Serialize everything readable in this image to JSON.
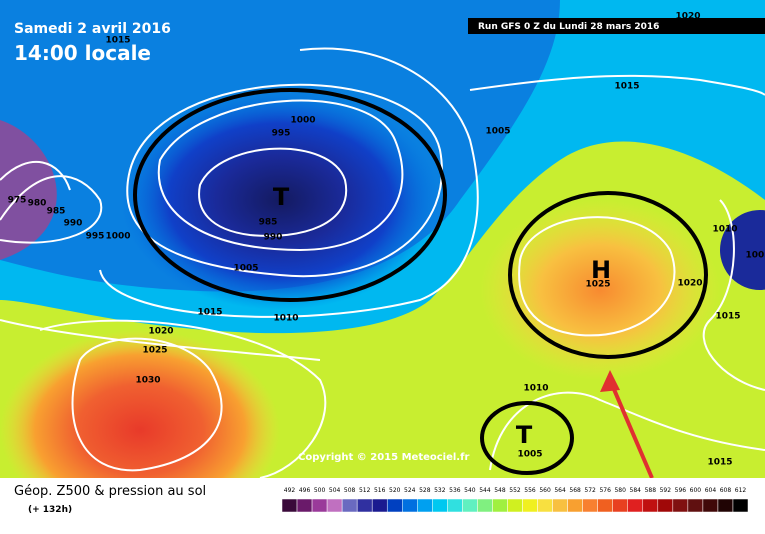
{
  "header": {
    "date": "Samedi 2 avril 2016",
    "time": "14:00 locale",
    "run": "Run GFS 0 Z du Lundi 28 mars 2016"
  },
  "footer": {
    "title": "Géop. Z500 & pression au sol",
    "lead": "(+ 132h)",
    "copyright": "Copyright © 2015 Meteociel.fr"
  },
  "centers": [
    "T",
    "H",
    "T"
  ],
  "isobar_labels": [
    "1015",
    "1000",
    "995",
    "1005",
    "1015",
    "1020",
    "975",
    "980",
    "985",
    "990",
    "995",
    "1000",
    "985",
    "990",
    "1005",
    "1015",
    "1010",
    "1010",
    "1005",
    "1020",
    "1025",
    "1015",
    "1020",
    "1025",
    "1030",
    "1010",
    "1005",
    "1015"
  ],
  "scale": [
    492,
    496,
    500,
    504,
    508,
    512,
    516,
    520,
    524,
    528,
    532,
    536,
    540,
    544,
    548,
    552,
    556,
    560,
    564,
    568,
    572,
    576,
    580,
    584,
    588,
    592,
    596,
    600,
    604,
    608,
    612
  ]
}
